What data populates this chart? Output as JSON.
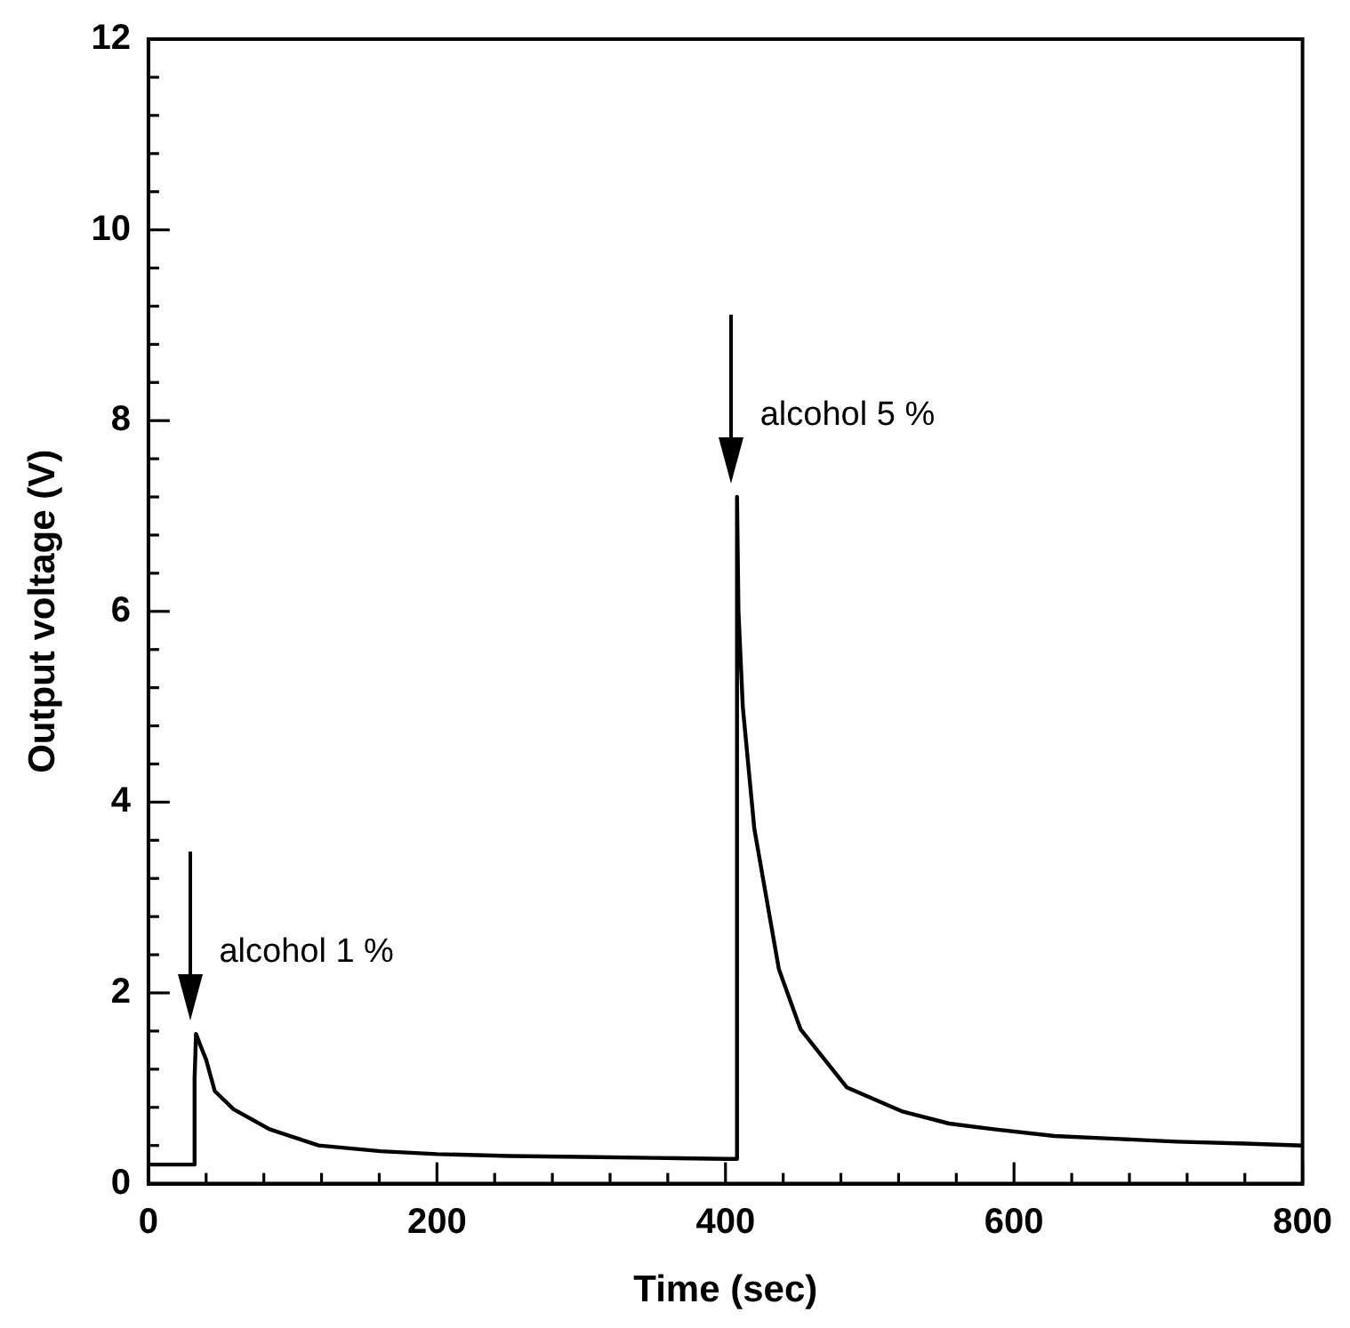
{
  "chart_data": {
    "type": "line",
    "xlabel": "Time (sec)",
    "ylabel": "Output voltage (V)",
    "series": [
      {
        "color": "#000000",
        "x": [
          0,
          32,
          32,
          33,
          36,
          40,
          46,
          59,
          84,
          118,
          161,
          200,
          250,
          300,
          350,
          400,
          408,
          408,
          409,
          412,
          420,
          437,
          452,
          484,
          522,
          555,
          586,
          628,
          670,
          713,
          760,
          800
        ],
        "values": [
          0.2,
          0.2,
          1.1,
          1.57,
          1.45,
          1.3,
          0.97,
          0.78,
          0.57,
          0.4,
          0.34,
          0.31,
          0.29,
          0.28,
          0.27,
          0.26,
          0.26,
          7.2,
          6.0,
          5.0,
          3.72,
          2.25,
          1.62,
          1.01,
          0.76,
          0.63,
          0.57,
          0.5,
          0.47,
          0.44,
          0.42,
          0.4
        ]
      }
    ],
    "xlim": [
      0,
      800
    ],
    "ylim": [
      0,
      12
    ],
    "xticks": [
      0,
      {
        "value": 40,
        "label": null
      },
      {
        "value": 80,
        "label": null
      },
      {
        "value": 120,
        "label": null
      },
      {
        "value": 160,
        "label": null
      },
      200,
      {
        "value": 240,
        "label": null
      },
      {
        "value": 280,
        "label": null
      },
      {
        "value": 320,
        "label": null
      },
      {
        "value": 360,
        "label": null
      },
      400,
      {
        "value": 440,
        "label": null
      },
      {
        "value": 480,
        "label": null
      },
      {
        "value": 520,
        "label": null
      },
      {
        "value": 560,
        "label": null
      },
      600,
      {
        "value": 640,
        "label": null
      },
      {
        "value": 680,
        "label": null
      },
      {
        "value": 720,
        "label": null
      },
      {
        "value": 760,
        "label": null
      },
      800
    ],
    "yticks": [
      0,
      {
        "value": 0.4,
        "label": null
      },
      {
        "value": 0.8,
        "label": null
      },
      {
        "value": 1.2,
        "label": null
      },
      {
        "value": 1.6,
        "label": null
      },
      2,
      {
        "value": 2.4,
        "label": null
      },
      {
        "value": 2.8,
        "label": null
      },
      {
        "value": 3.2,
        "label": null
      },
      {
        "value": 3.6,
        "label": null
      },
      4,
      {
        "value": 4.4,
        "label": null
      },
      {
        "value": 4.8,
        "label": null
      },
      {
        "value": 5.2,
        "label": null
      },
      {
        "value": 5.6,
        "label": null
      },
      6,
      {
        "value": 6.4,
        "label": null
      },
      {
        "value": 6.8,
        "label": null
      },
      {
        "value": 7.2,
        "label": null
      },
      {
        "value": 7.6,
        "label": null
      },
      8,
      {
        "value": 8.4,
        "label": null
      },
      {
        "value": 8.8,
        "label": null
      },
      {
        "value": 9.2,
        "label": null
      },
      {
        "value": 9.6,
        "label": null
      },
      10,
      {
        "value": 10.4,
        "label": null
      },
      {
        "value": 10.8,
        "label": null
      },
      {
        "value": 11.2,
        "label": null
      },
      {
        "value": 11.6,
        "label": null
      },
      12
    ],
    "grid": false,
    "legend": false,
    "marker": "none",
    "line_style": "solid",
    "annotations": [
      {
        "text": "alcohol 1 %",
        "x": 33,
        "y": 1.57
      },
      {
        "text": "alcohol 5 %",
        "x": 408,
        "y": 7.2
      }
    ]
  }
}
